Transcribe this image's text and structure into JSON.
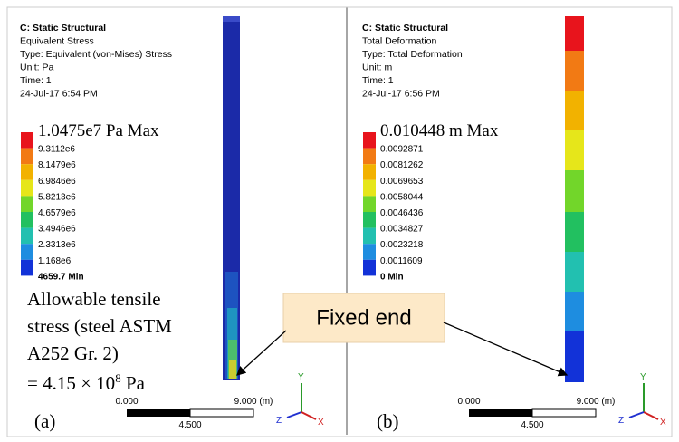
{
  "panels": [
    {
      "header": [
        "C: Static Structural",
        "Equivalent Stress",
        "Type: Equivalent (von-Mises) Stress",
        "Unit: Pa",
        "Time: 1",
        "24-Jul-17 6:54 PM"
      ],
      "legend_max": "1.0475e7 Pa Max",
      "legend_values": [
        "9.3112e6",
        "8.1479e6",
        "6.9846e6",
        "5.8213e6",
        "4.6579e6",
        "3.4946e6",
        "2.3313e6",
        "1.168e6"
      ],
      "legend_min": "4659.7 Min",
      "scale": {
        "start": "0.000",
        "end": "9.000 (m)",
        "mid": "4.500"
      },
      "axes": {
        "y": "Y",
        "z": "Z",
        "x": "X"
      },
      "label": "(a)"
    },
    {
      "header": [
        "C: Static Structural",
        "Total Deformation",
        "Type: Total Deformation",
        "Unit: m",
        "Time: 1",
        "24-Jul-17 6:56 PM"
      ],
      "legend_max": "0.010448 m Max",
      "legend_values": [
        "0.0092871",
        "0.0081262",
        "0.0069653",
        "0.0058044",
        "0.0046436",
        "0.0034827",
        "0.0023218",
        "0.0011609"
      ],
      "legend_min": "0 Min",
      "scale": {
        "start": "0.000",
        "end": "9.000 (m)",
        "mid": "4.500"
      },
      "axes": {
        "y": "Y",
        "z": "Z",
        "x": "X"
      },
      "label": "(b)"
    }
  ],
  "annotation": {
    "allowable": [
      "Allowable  tensile",
      "stress (steel ASTM",
      "A252 Gr. 2)"
    ],
    "allowable_value": {
      "base": "= 4.15 × 10",
      "exponent": "8",
      "unit": " Pa"
    },
    "callout": "Fixed end"
  }
}
